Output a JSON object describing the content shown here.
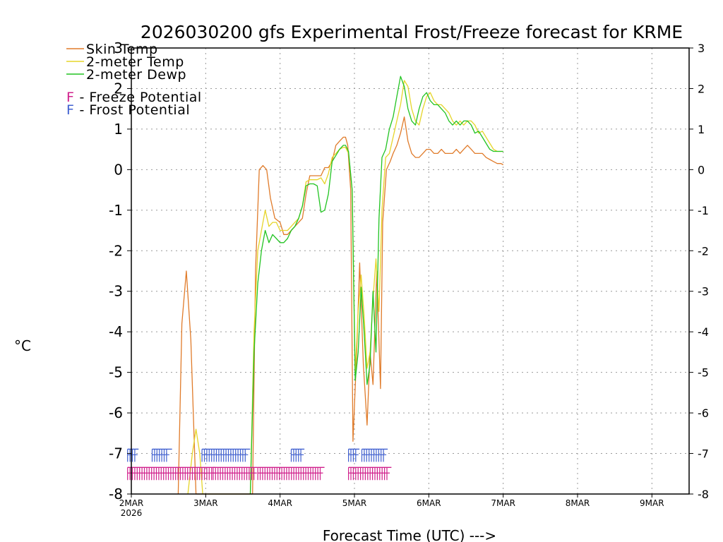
{
  "chart_data": {
    "type": "line",
    "title": "2026030200 gfs Experimental Frost/Freeze forecast for KRME",
    "xlabel": "Forecast Time (UTC) --->",
    "ylabel": "°C",
    "ylim": [
      -8,
      3
    ],
    "xlim": [
      0,
      7.5
    ],
    "yticks": [
      -8,
      -7,
      -6,
      -5,
      -4,
      -3,
      -2,
      -1,
      0,
      1,
      2,
      3
    ],
    "ytick_labels": [
      "-8",
      "-7",
      "-6",
      "-5",
      "-4",
      "-3",
      "-2",
      "-1",
      "0",
      "1",
      "2",
      "3"
    ],
    "xticks": [
      0,
      1,
      2,
      3,
      4,
      5,
      6,
      7
    ],
    "xtick_labels": [
      "2MAR",
      "3MAR",
      "4MAR",
      "5MAR",
      "6MAR",
      "7MAR",
      "8MAR",
      "9MAR"
    ],
    "x_sublabel": "2026",
    "grid": true,
    "legend_position": "top-left",
    "series": [
      {
        "name": "Skin Temp",
        "color": "#e07b2a",
        "x": [
          0.63,
          0.68,
          0.74,
          0.8,
          0.87,
          0.93,
          1.63,
          1.67,
          1.72,
          1.77,
          1.82,
          1.87,
          1.93,
          2.0,
          2.05,
          2.1,
          2.15,
          2.2,
          2.25,
          2.3,
          2.35,
          2.4,
          2.45,
          2.5,
          2.55,
          2.6,
          2.65,
          2.7,
          2.75,
          2.8,
          2.85,
          2.88,
          2.91,
          2.95,
          2.98,
          3.03,
          3.07,
          3.12,
          3.17,
          3.21,
          3.25,
          3.3,
          3.35,
          3.38,
          3.43,
          3.48,
          3.52,
          3.57,
          3.62,
          3.67,
          3.72,
          3.77,
          3.82,
          3.87,
          3.92,
          3.97,
          4.02,
          4.07,
          4.12,
          4.17,
          4.22,
          4.27,
          4.32,
          4.37,
          4.42,
          4.47,
          4.52,
          4.57,
          4.62,
          4.67,
          4.72,
          4.77,
          4.82,
          4.87,
          4.92,
          4.97,
          5.0
        ],
        "values": [
          -8.0,
          -3.8,
          -2.5,
          -4.2,
          -8.0,
          -8.0,
          -8.0,
          -2.5,
          0.0,
          0.1,
          0.0,
          -0.7,
          -1.2,
          -1.3,
          -1.6,
          -1.6,
          -1.5,
          -1.4,
          -1.3,
          -1.2,
          -0.6,
          -0.15,
          -0.15,
          -0.15,
          -0.15,
          0.05,
          0.05,
          0.2,
          0.6,
          0.7,
          0.8,
          0.8,
          0.6,
          -0.5,
          -6.7,
          -4.5,
          -2.3,
          -4.8,
          -6.3,
          -4.5,
          -5.3,
          -2.5,
          -5.4,
          -1.3,
          0.0,
          0.2,
          0.4,
          0.6,
          0.9,
          1.3,
          0.7,
          0.4,
          0.3,
          0.3,
          0.4,
          0.5,
          0.5,
          0.4,
          0.4,
          0.5,
          0.4,
          0.4,
          0.4,
          0.5,
          0.4,
          0.5,
          0.6,
          0.5,
          0.4,
          0.4,
          0.4,
          0.3,
          0.25,
          0.2,
          0.15,
          0.15,
          0.12
        ]
      },
      {
        "name": "2-meter Temp",
        "color": "#e6d52a",
        "x": [
          0.76,
          0.82,
          0.87,
          0.92,
          0.96,
          1.6,
          1.65,
          1.7,
          1.75,
          1.8,
          1.85,
          1.9,
          1.95,
          2.0,
          2.05,
          2.1,
          2.15,
          2.2,
          2.25,
          2.3,
          2.35,
          2.4,
          2.45,
          2.5,
          2.55,
          2.6,
          2.65,
          2.7,
          2.75,
          2.8,
          2.85,
          2.88,
          2.92,
          2.97,
          3.01,
          3.05,
          3.09,
          3.13,
          3.17,
          3.21,
          3.25,
          3.29,
          3.33,
          3.37,
          3.42,
          3.47,
          3.52,
          3.57,
          3.62,
          3.67,
          3.72,
          3.77,
          3.82,
          3.87,
          3.92,
          3.97,
          4.02,
          4.07,
          4.12,
          4.17,
          4.22,
          4.27,
          4.32,
          4.37,
          4.42,
          4.47,
          4.52,
          4.57,
          4.62,
          4.67,
          4.72,
          4.77,
          4.82,
          4.87,
          4.92,
          4.97,
          5.0
        ],
        "values": [
          -8.0,
          -7.0,
          -6.4,
          -7.0,
          -8.0,
          -8.0,
          -4.0,
          -2.0,
          -1.5,
          -1.0,
          -1.4,
          -1.3,
          -1.3,
          -1.5,
          -1.5,
          -1.5,
          -1.4,
          -1.3,
          -1.2,
          -0.9,
          -0.3,
          -0.25,
          -0.25,
          -0.25,
          -0.2,
          -0.35,
          -0.1,
          0.3,
          0.4,
          0.5,
          0.55,
          0.55,
          0.4,
          -0.5,
          -5.0,
          -3.5,
          -2.6,
          -3.6,
          -4.9,
          -4.5,
          -3.2,
          -2.2,
          -3.5,
          -1.0,
          0.3,
          0.4,
          0.8,
          1.2,
          1.6,
          2.2,
          2.05,
          1.5,
          1.2,
          1.1,
          1.5,
          1.8,
          1.9,
          1.7,
          1.6,
          1.6,
          1.5,
          1.4,
          1.2,
          1.1,
          1.2,
          1.1,
          1.2,
          1.2,
          1.1,
          0.9,
          0.95,
          0.8,
          0.65,
          0.5,
          0.45,
          0.45,
          0.45
        ]
      },
      {
        "name": "2-meter Dewp",
        "color": "#22c422",
        "x": [
          1.6,
          1.65,
          1.7,
          1.75,
          1.8,
          1.85,
          1.9,
          1.95,
          2.0,
          2.05,
          2.1,
          2.15,
          2.2,
          2.25,
          2.3,
          2.35,
          2.4,
          2.45,
          2.5,
          2.55,
          2.6,
          2.65,
          2.7,
          2.75,
          2.8,
          2.85,
          2.88,
          2.92,
          2.97,
          3.01,
          3.05,
          3.09,
          3.13,
          3.17,
          3.21,
          3.25,
          3.29,
          3.33,
          3.37,
          3.42,
          3.47,
          3.52,
          3.57,
          3.62,
          3.67,
          3.72,
          3.77,
          3.82,
          3.87,
          3.92,
          3.97,
          4.02,
          4.07,
          4.12,
          4.17,
          4.22,
          4.27,
          4.32,
          4.37,
          4.42,
          4.47,
          4.52,
          4.57,
          4.62,
          4.67,
          4.72,
          4.77,
          4.82,
          4.87,
          4.92,
          4.97,
          5.0
        ],
        "values": [
          -8.0,
          -4.5,
          -2.8,
          -2.0,
          -1.5,
          -1.8,
          -1.6,
          -1.7,
          -1.8,
          -1.8,
          -1.7,
          -1.5,
          -1.4,
          -1.2,
          -0.9,
          -0.4,
          -0.35,
          -0.35,
          -0.4,
          -1.05,
          -1.0,
          -0.6,
          0.2,
          0.35,
          0.5,
          0.6,
          0.6,
          0.45,
          -0.5,
          -5.2,
          -4.5,
          -2.9,
          -4.0,
          -5.3,
          -4.8,
          -3.0,
          -4.5,
          -1.2,
          0.3,
          0.5,
          1.0,
          1.3,
          1.8,
          2.3,
          2.05,
          1.5,
          1.2,
          1.1,
          1.5,
          1.8,
          1.9,
          1.7,
          1.6,
          1.6,
          1.5,
          1.4,
          1.2,
          1.1,
          1.2,
          1.1,
          1.2,
          1.2,
          1.1,
          0.9,
          0.95,
          0.8,
          0.65,
          0.5,
          0.45,
          0.45,
          0.45,
          0.45
        ]
      }
    ],
    "markers": [
      {
        "name": "Freeze Potential",
        "symbol": "F",
        "color": "#d0208c",
        "level": -7.5,
        "ranges": [
          [
            -0.05,
            1.08
          ],
          [
            1.1,
            1.65
          ],
          [
            1.7,
            2.55
          ],
          [
            2.92,
            3.45
          ]
        ]
      },
      {
        "name": "Frost Potential",
        "symbol": "F",
        "color": "#4060d0",
        "level": -7.05,
        "ranges": [
          [
            -0.05,
            0.05
          ],
          [
            0.28,
            0.5
          ],
          [
            0.95,
            1.55
          ],
          [
            2.15,
            2.28
          ],
          [
            2.92,
            3.02
          ],
          [
            3.1,
            3.4
          ]
        ]
      }
    ],
    "legend": [
      {
        "label": "Skin Temp",
        "color": "#e07b2a",
        "kind": "line"
      },
      {
        "label": "2-meter Temp",
        "color": "#e6d52a",
        "kind": "line"
      },
      {
        "label": "2-meter Dewp",
        "color": "#22c422",
        "kind": "line"
      },
      {
        "symbol": "F",
        "label": " - Freeze Potential",
        "color": "#d0208c",
        "kind": "marker"
      },
      {
        "symbol": "F",
        "label": " - Frost Potential",
        "color": "#4060d0",
        "kind": "marker"
      }
    ]
  }
}
